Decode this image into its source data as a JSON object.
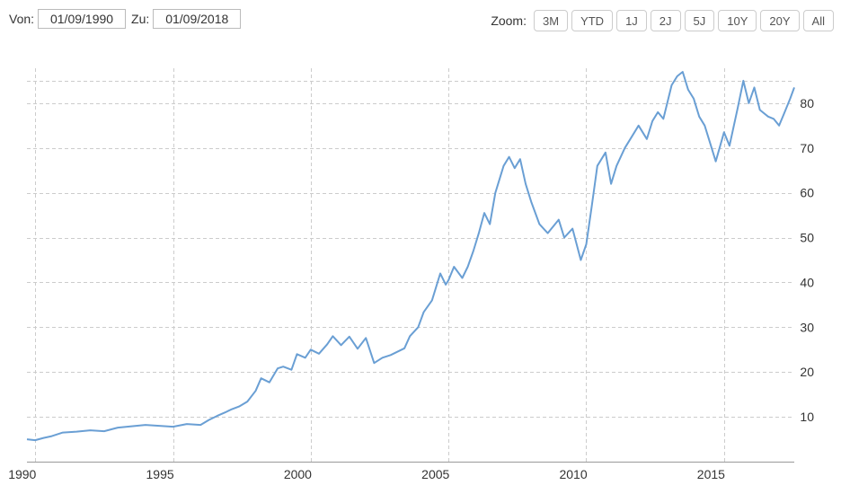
{
  "range": {
    "from_label": "Von:",
    "from_value": "01/09/1990",
    "to_label": "Zu:",
    "to_value": "01/09/2018"
  },
  "zoom": {
    "label": "Zoom:",
    "buttons": [
      "3M",
      "YTD",
      "1J",
      "2J",
      "5J",
      "10Y",
      "20Y",
      "All"
    ]
  },
  "colors": {
    "line": "#6a9fd4",
    "grid": "#cccccc"
  },
  "chart_data": {
    "type": "line",
    "xlim": [
      1989.7,
      2017.55
    ],
    "ylim": [
      0,
      91
    ],
    "grid": true,
    "legend": "none",
    "x_ticks": [
      1990,
      1995,
      2000,
      2005,
      2010,
      2015
    ],
    "y_ticks": [
      10,
      20,
      30,
      40,
      50,
      60,
      70,
      80
    ],
    "x": [
      1989.7,
      1990.0,
      1990.3,
      1990.6,
      1991.0,
      1991.5,
      1992.0,
      1992.5,
      1993.0,
      1993.5,
      1994.0,
      1994.5,
      1995.0,
      1995.5,
      1996.0,
      1996.3,
      1996.6,
      1996.9,
      1997.1,
      1997.4,
      1997.7,
      1998.0,
      1998.2,
      1998.5,
      1998.8,
      1999.0,
      1999.3,
      1999.5,
      1999.8,
      2000.0,
      2000.3,
      2000.6,
      2000.8,
      2001.1,
      2001.4,
      2001.7,
      2002.0,
      2002.3,
      2002.6,
      2002.9,
      2003.1,
      2003.4,
      2003.6,
      2003.9,
      2004.1,
      2004.4,
      2004.7,
      2004.9,
      2005.0,
      2005.2,
      2005.5,
      2005.7,
      2005.9,
      2006.1,
      2006.3,
      2006.5,
      2006.7,
      2007.0,
      2007.2,
      2007.4,
      2007.6,
      2007.8,
      2008.0,
      2008.3,
      2008.6,
      2008.8,
      2009.0,
      2009.2,
      2009.5,
      2009.8,
      2010.0,
      2010.2,
      2010.4,
      2010.7,
      2010.9,
      2011.1,
      2011.4,
      2011.7,
      2011.9,
      2012.2,
      2012.4,
      2012.6,
      2012.8,
      2013.1,
      2013.3,
      2013.5,
      2013.7,
      2013.9,
      2014.1,
      2014.3,
      2014.5,
      2014.7,
      2015.0,
      2015.2,
      2015.5,
      2015.7,
      2015.9,
      2016.1,
      2016.3,
      2016.6,
      2016.8,
      2017.0,
      2017.2,
      2017.4,
      2017.55
    ],
    "y": [
      5,
      4.8,
      5.3,
      5.7,
      6.5,
      6.7,
      7.0,
      6.8,
      7.6,
      7.9,
      8.2,
      8.0,
      7.8,
      8.4,
      8.2,
      9.3,
      10.2,
      11.0,
      11.6,
      12.3,
      13.4,
      15.8,
      18.6,
      17.7,
      20.8,
      21.2,
      20.5,
      24.0,
      23.2,
      25.0,
      24.1,
      26.2,
      28.0,
      26.0,
      27.9,
      25.2,
      27.6,
      22.0,
      23.2,
      23.8,
      24.4,
      25.3,
      28.0,
      30.0,
      33.4,
      36.0,
      42.0,
      39.5,
      40.5,
      43.5,
      41.0,
      43.5,
      47.0,
      51.0,
      55.5,
      53.0,
      60.0,
      66.0,
      68.0,
      65.5,
      67.5,
      62.0,
      58.0,
      53.0,
      51.0,
      52.5,
      54.0,
      50.0,
      52.0,
      45.0,
      48.5,
      57.0,
      66.0,
      69.0,
      62.0,
      66.0,
      70.0,
      73.0,
      75.0,
      72.0,
      76.0,
      78.0,
      76.5,
      84.0,
      86.0,
      87.0,
      83.0,
      81.0,
      77.0,
      75.0,
      71.0,
      67.0,
      73.5,
      70.5,
      79.0,
      85.0,
      80.0,
      83.5,
      78.5,
      77.0,
      76.5,
      75.0,
      78.0,
      81.0,
      83.5
    ]
  }
}
